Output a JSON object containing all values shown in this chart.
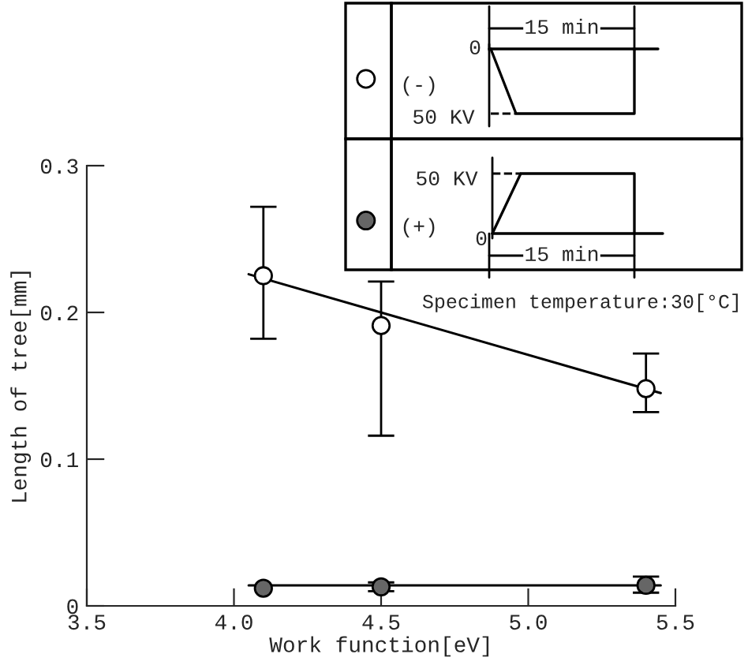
{
  "chart_data": {
    "type": "scatter",
    "xlabel": "Work function[eV]",
    "ylabel": "Length of tree[mm]",
    "xlim": [
      3.5,
      5.5
    ],
    "ylim": [
      0,
      0.3
    ],
    "xticks": [
      3.5,
      {
        "value": 4,
        "label": "4.0"
      },
      4.5,
      {
        "value": 5,
        "label": "5.0"
      },
      5.5
    ],
    "yticks": [
      0,
      0.1,
      0.2,
      0.3
    ],
    "line_style": "solid",
    "grid": false,
    "legend": "top right",
    "series": [
      {
        "type": "line",
        "color": "#000000",
        "x": [
          4.05,
          5.45
        ],
        "values": [
          0.226,
          0.145
        ]
      },
      {
        "type": "line",
        "color": "#000000",
        "x": [
          4.05,
          5.45
        ],
        "values": [
          0.014,
          0.014
        ]
      },
      {
        "name": "(-)",
        "marker": "circle",
        "color": "#ffffff",
        "x": [
          4.1,
          4.5,
          5.4
        ],
        "values": [
          0.225,
          0.191,
          0.148
        ],
        "errors": [
          [
            0.182,
            0.272
          ],
          [
            0.116,
            0.221
          ],
          [
            0.132,
            0.172
          ]
        ]
      },
      {
        "name": "(+)",
        "marker": "circle",
        "color": "#666666",
        "x": [
          4.1,
          4.5,
          5.4
        ],
        "values": [
          0.012,
          0.013,
          0.014
        ],
        "errors": [
          null,
          [
            0.01,
            0.016
          ],
          [
            0.009,
            0.02
          ]
        ]
      }
    ],
    "annotations": [
      "Specimen temperature:30[°C]",
      "0",
      "50 KV",
      "15 min",
      "50 KV",
      "0",
      "15 min"
    ]
  }
}
